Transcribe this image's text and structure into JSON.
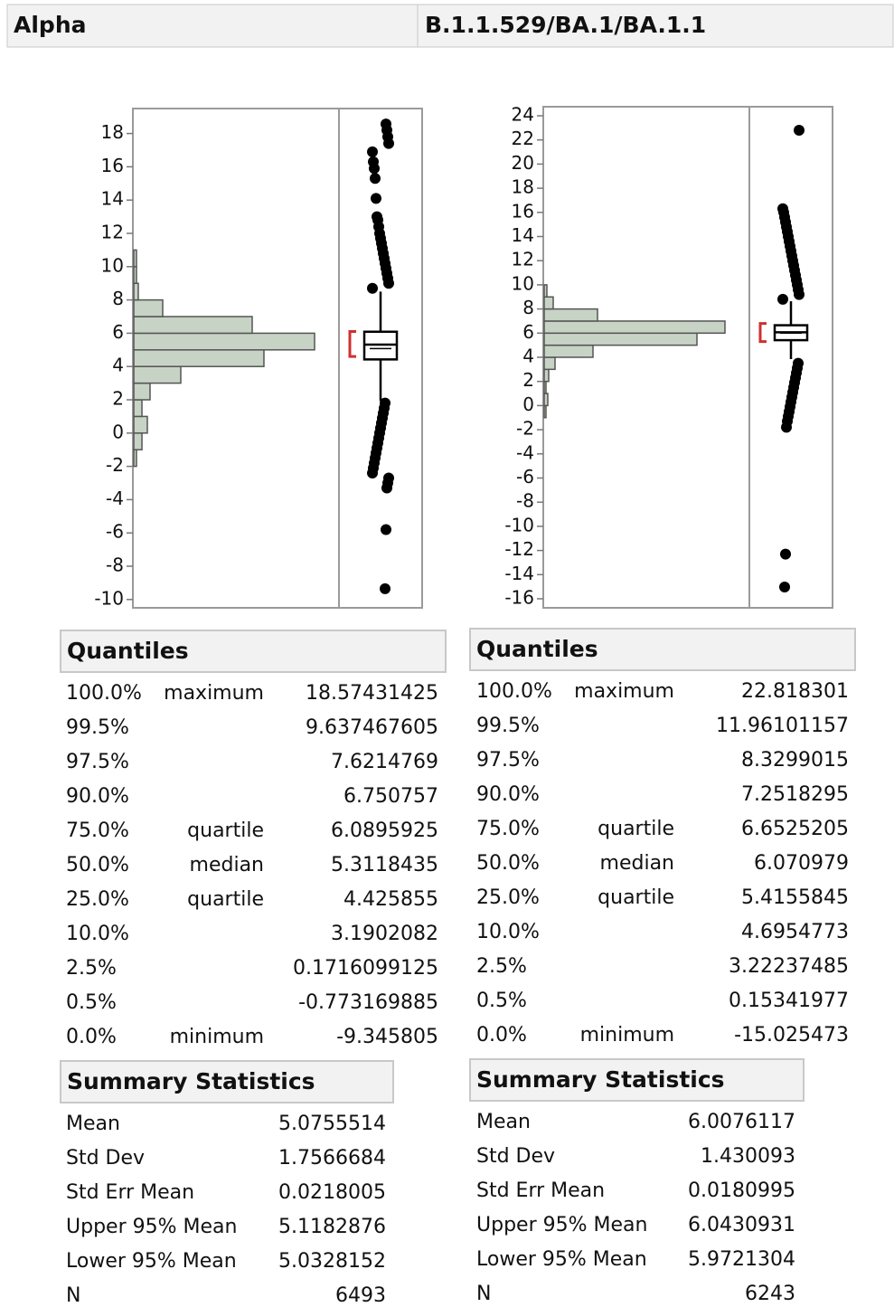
{
  "header": {
    "left": "Alpha",
    "right": "B.1.1.529/BA.1/BA.1.1"
  },
  "chart_data": [
    {
      "type": "histogram",
      "orientation": "horizontal",
      "color": "#c7d3c4",
      "bins": [
        -2,
        -1,
        0,
        1,
        2,
        3,
        4,
        5,
        6,
        7,
        8,
        9,
        10,
        11
      ],
      "counts": [
        31,
        94,
        156,
        94,
        187,
        541,
        1498,
        2081,
        1363,
        333,
        52,
        31,
        31
      ],
      "ylim": [
        -10.5,
        19.5
      ],
      "yticks": [
        -10,
        -8,
        -6,
        -4,
        -2,
        0,
        2,
        4,
        6,
        8,
        10,
        12,
        14,
        16,
        18
      ],
      "whiskers": [
        1.94,
        8.5
      ],
      "shortest_half": [
        4.6,
        6.1
      ],
      "outliers": [
        8.7,
        9.0,
        9.3,
        9.6,
        9.9,
        10.2,
        10.5,
        10.8,
        11.1,
        11.4,
        11.7,
        12.0,
        12.4,
        12.8,
        13.0,
        14.1,
        15.3,
        15.9,
        16.3,
        16.9,
        17.4,
        17.8,
        18.2,
        18.57,
        1.8,
        1.5,
        1.2,
        0.9,
        0.6,
        0.3,
        0,
        -0.3,
        -0.6,
        -0.9,
        -1.2,
        -1.5,
        -1.8,
        -2.1,
        -2.4,
        -2.7,
        -3.0,
        -3.3,
        -5.8,
        -9.35
      ]
    },
    {
      "type": "histogram",
      "orientation": "horizontal",
      "color": "#c7d3c4",
      "bins": [
        -1,
        0,
        1,
        2,
        3,
        4,
        5,
        6,
        7,
        8,
        9,
        10
      ],
      "counts": [
        24,
        48,
        24,
        60,
        144,
        648,
        2028,
        2400,
        708,
        120,
        36
      ],
      "ylim": [
        -16.75,
        24.75
      ],
      "yticks": [
        -16,
        -14,
        -12,
        -10,
        -8,
        -6,
        -4,
        -2,
        0,
        2,
        4,
        6,
        8,
        10,
        12,
        14,
        16,
        18,
        20,
        22,
        24
      ],
      "whiskers": [
        3.85,
        8.64
      ],
      "shortest_half": [
        5.3,
        6.8
      ],
      "outliers": [
        8.8,
        9.2,
        9.6,
        10.0,
        10.4,
        10.8,
        11.2,
        11.6,
        12.0,
        12.4,
        12.8,
        13.2,
        13.6,
        14.0,
        14.4,
        14.8,
        15.2,
        15.6,
        16.0,
        16.3,
        22.8,
        3.5,
        3.1,
        2.7,
        2.3,
        1.9,
        1.5,
        1.1,
        0.7,
        0.3,
        -0.1,
        -0.5,
        -0.9,
        -1.3,
        -1.8,
        -12.3,
        -15.03
      ]
    }
  ],
  "panels": [
    {
      "quantiles": {
        "title": "Quantiles",
        "rows": [
          {
            "pct": "100.0%",
            "label": "maximum",
            "value": 18.57431425
          },
          {
            "pct": "99.5%",
            "value": 9.637467605
          },
          {
            "pct": "97.5%",
            "value": 7.6214769
          },
          {
            "pct": "90.0%",
            "value": 6.750757
          },
          {
            "pct": "75.0%",
            "label": "quartile",
            "value": 6.0895925
          },
          {
            "pct": "50.0%",
            "label": "median",
            "value": 5.3118435
          },
          {
            "pct": "25.0%",
            "label": "quartile",
            "value": 4.425855
          },
          {
            "pct": "10.0%",
            "value": 3.1902082
          },
          {
            "pct": "2.5%",
            "value": 0.1716099125
          },
          {
            "pct": "0.5%",
            "value": -0.773169885
          },
          {
            "pct": "0.0%",
            "label": "minimum",
            "value": -9.345805
          }
        ]
      },
      "summary": {
        "title": "Summary Statistics",
        "rows": [
          {
            "label": "Mean",
            "value": 5.0755514
          },
          {
            "label": "Std Dev",
            "value": 1.7566684
          },
          {
            "label": "Std Err Mean",
            "value": 0.0218005
          },
          {
            "label": "Upper 95% Mean",
            "value": 5.1182876
          },
          {
            "label": "Lower 95% Mean",
            "value": 5.0328152
          },
          {
            "label": "N",
            "value": 6493
          }
        ]
      }
    },
    {
      "quantiles": {
        "title": "Quantiles",
        "rows": [
          {
            "pct": "100.0%",
            "label": "maximum",
            "value": 22.818301
          },
          {
            "pct": "99.5%",
            "value": 11.96101157
          },
          {
            "pct": "97.5%",
            "value": 8.3299015
          },
          {
            "pct": "90.0%",
            "value": 7.2518295
          },
          {
            "pct": "75.0%",
            "label": "quartile",
            "value": 6.6525205
          },
          {
            "pct": "50.0%",
            "label": "median",
            "value": 6.070979
          },
          {
            "pct": "25.0%",
            "label": "quartile",
            "value": 5.4155845
          },
          {
            "pct": "10.0%",
            "value": 4.6954773
          },
          {
            "pct": "2.5%",
            "value": 3.22237485
          },
          {
            "pct": "0.5%",
            "value": 0.15341977
          },
          {
            "pct": "0.0%",
            "label": "minimum",
            "value": -15.025473
          }
        ]
      },
      "summary": {
        "title": "Summary Statistics",
        "rows": [
          {
            "label": "Mean",
            "value": 6.0076117
          },
          {
            "label": "Std Dev",
            "value": 1.430093
          },
          {
            "label": "Std Err Mean",
            "value": 0.0180995
          },
          {
            "label": "Upper 95% Mean",
            "value": 6.0430931
          },
          {
            "label": "Lower 95% Mean",
            "value": 5.9721304
          },
          {
            "label": "N",
            "value": 6243
          }
        ]
      }
    }
  ]
}
